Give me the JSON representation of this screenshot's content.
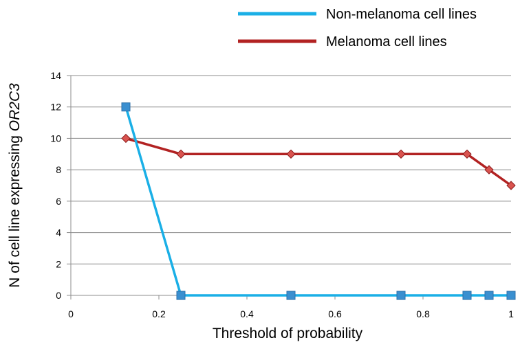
{
  "chart_data": {
    "type": "line",
    "xlabel": "Threshold of probability",
    "ylabel_prefix": "N of cell line expressing ",
    "ylabel_gene": "OR2C3",
    "xlim": [
      0,
      1
    ],
    "ylim": [
      0,
      14
    ],
    "x_ticks": [
      "0",
      "0.2",
      "0.4",
      "0.6",
      "0.8",
      "1"
    ],
    "y_ticks": [
      "0",
      "2",
      "4",
      "6",
      "8",
      "10",
      "12",
      "14"
    ],
    "grid": "horizontal",
    "legend_position": "top-right",
    "series": [
      {
        "name": "Non-melanoma cell lines",
        "color": "#1aafe6",
        "marker": "square",
        "marker_color": "#3a8fd0",
        "x": [
          0.125,
          0.25,
          0.5,
          0.75,
          0.9,
          0.95,
          1.0
        ],
        "y": [
          12,
          0,
          0,
          0,
          0,
          0,
          0
        ]
      },
      {
        "name": "Melanoma cell lines",
        "color": "#b22222",
        "marker": "diamond",
        "marker_color": "#d9534f",
        "x": [
          0.125,
          0.25,
          0.5,
          0.75,
          0.9,
          0.95,
          1.0
        ],
        "y": [
          10,
          9,
          9,
          9,
          9,
          8,
          7
        ]
      }
    ]
  }
}
